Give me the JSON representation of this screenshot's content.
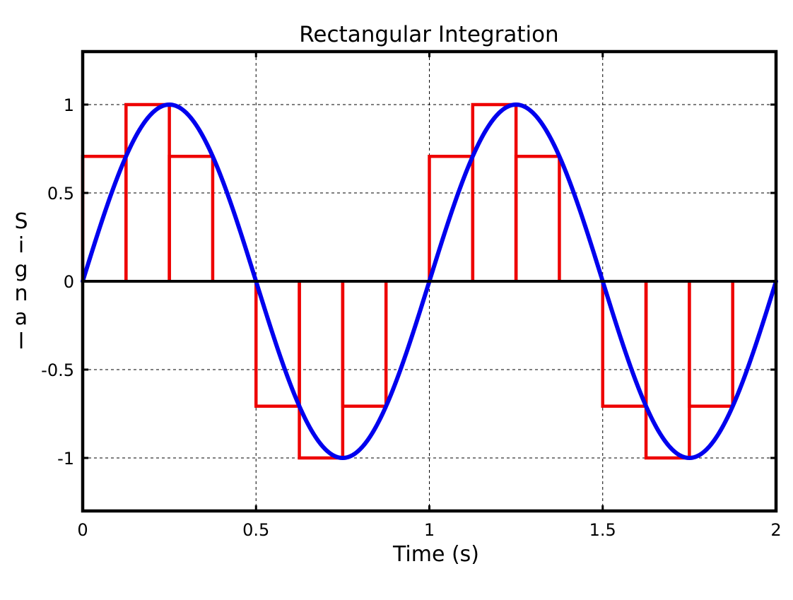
{
  "colors": {
    "signal": "#0000ee",
    "rectangles": "#ee0000",
    "axes": "#000000",
    "grid": "#000000",
    "background": "#ffffff"
  },
  "chart_data": {
    "type": "line",
    "title": "Rectangular Integration",
    "xlabel": "Time (s)",
    "ylabel": "Signal",
    "xlim": [
      0,
      2
    ],
    "ylim": [
      -1.3,
      1.3
    ],
    "x_ticks": [
      0,
      0.5,
      1,
      1.5,
      2
    ],
    "x_tick_labels": [
      "0",
      "0.5",
      "1",
      "1.5",
      "2"
    ],
    "y_ticks": [
      -1,
      -0.5,
      0,
      0.5,
      1
    ],
    "y_tick_labels": [
      "-1",
      "-0.5",
      "0",
      "0.5",
      "1"
    ],
    "grid": true,
    "grid_style": "dashed",
    "series": [
      {
        "kind": "curve",
        "function": "sin(2*pi*t)",
        "x_range": [
          0,
          2
        ],
        "color": "#0000ee"
      },
      {
        "kind": "rectangles",
        "color": "#ee0000",
        "width": 0.125,
        "x_start": [
          0,
          0.125,
          0.25,
          0.375,
          0.5,
          0.625,
          0.75,
          0.875,
          1,
          1.125,
          1.25,
          1.375,
          1.5,
          1.625,
          1.75,
          1.875
        ],
        "heights": [
          0.707,
          1,
          0.707,
          0,
          -0.707,
          -1,
          -0.707,
          0,
          0.707,
          1,
          0.707,
          0,
          -0.707,
          -1,
          -0.707,
          0
        ]
      }
    ]
  }
}
